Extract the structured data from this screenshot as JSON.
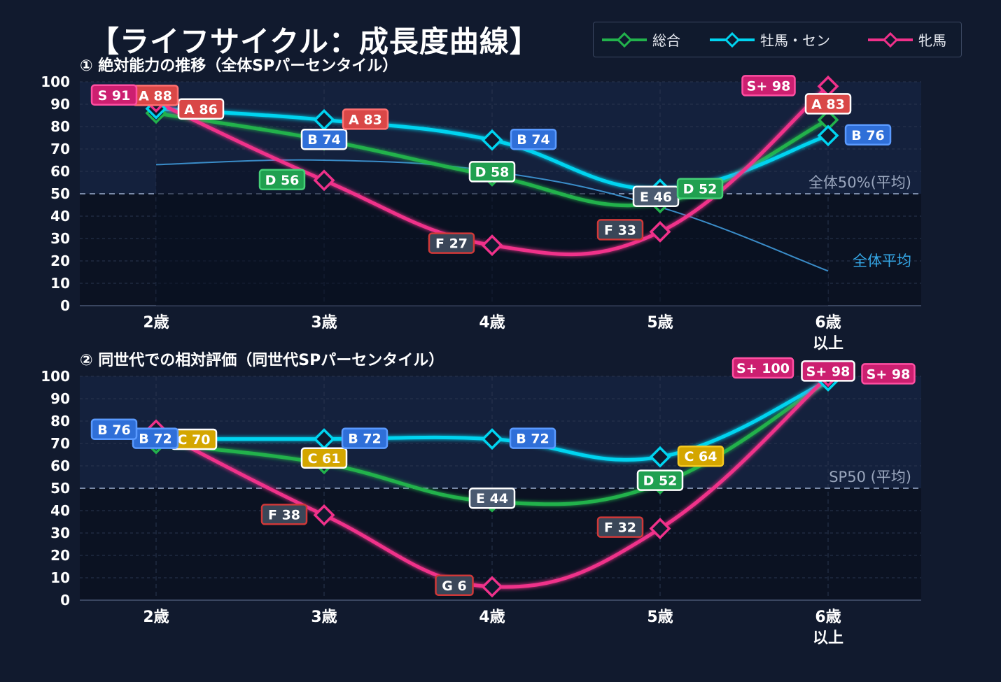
{
  "title": "【ライフサイクル：成長度曲線】",
  "colors": {
    "total": "#22b24c",
    "stallion": "#00d4f0",
    "mare": "#f0318a",
    "background": "#111a2e",
    "plot_bg": "#0f1a2e",
    "baseline": "#3a8cc8"
  },
  "legend": [
    {
      "key": "total",
      "label": "総合",
      "color": "#22b24c"
    },
    {
      "key": "stallion",
      "label": "牡馬・セン",
      "color": "#00d4f0"
    },
    {
      "key": "mare",
      "label": "牝馬",
      "color": "#f0318a"
    }
  ],
  "chart_data": [
    {
      "type": "line",
      "title": "① 絶対能力の推移（全体SPパーセンタイル）",
      "categories": [
        "2歳",
        "3歳",
        "4歳",
        "5歳",
        "6歳\n以上"
      ],
      "ylim": [
        0,
        100
      ],
      "yticks": [
        0,
        10,
        20,
        30,
        40,
        50,
        60,
        70,
        80,
        90,
        100
      ],
      "grid": true,
      "reference_line": {
        "y": 50,
        "label": "全体50%(平均)"
      },
      "baseline": {
        "name": "全体平均",
        "values": [
          63,
          65,
          60,
          44,
          15.5
        ]
      },
      "series": [
        {
          "key": "total",
          "name": "総合",
          "values": [
            86,
            74,
            58,
            46,
            83
          ],
          "labels": [
            "A 86",
            "B 74",
            "D 58",
            "E 46",
            "A 83"
          ]
        },
        {
          "key": "stallion",
          "name": "牡馬・セン",
          "values": [
            88,
            83,
            74,
            52,
            76
          ],
          "labels": [
            "A 88",
            "A 83",
            "B 74",
            "D 52",
            "B 76"
          ]
        },
        {
          "key": "mare",
          "name": "牝馬",
          "values": [
            91,
            56,
            27,
            33,
            98
          ],
          "labels": [
            "S 91",
            "D 56",
            "F 27",
            "F 33",
            "S+ 98"
          ]
        }
      ]
    },
    {
      "type": "line",
      "title": "② 同世代での相対評価（同世代SPパーセンタイル）",
      "categories": [
        "2歳",
        "3歳",
        "4歳",
        "5歳",
        "6歳\n以上"
      ],
      "ylim": [
        0,
        100
      ],
      "yticks": [
        0,
        10,
        20,
        30,
        40,
        50,
        60,
        70,
        80,
        90,
        100
      ],
      "grid": true,
      "reference_line": {
        "y": 50,
        "label": "SP50 (平均)"
      },
      "series": [
        {
          "key": "total",
          "name": "総合",
          "values": [
            70,
            61,
            44,
            52,
            98
          ],
          "labels": [
            "C 70",
            "C 61",
            "E 44",
            "D 52",
            "S+ 98"
          ]
        },
        {
          "key": "stallion",
          "name": "牡馬・セン",
          "values": [
            72,
            72,
            72,
            64,
            98
          ],
          "labels": [
            "B 72",
            "B 72",
            "B 72",
            "C 64",
            "S+ 98"
          ]
        },
        {
          "key": "mare",
          "name": "牝馬",
          "values": [
            76,
            38,
            6,
            32,
            100
          ],
          "labels": [
            "B 76",
            "F 38",
            "G 6",
            "F 32",
            "S+ 100"
          ]
        }
      ]
    }
  ]
}
